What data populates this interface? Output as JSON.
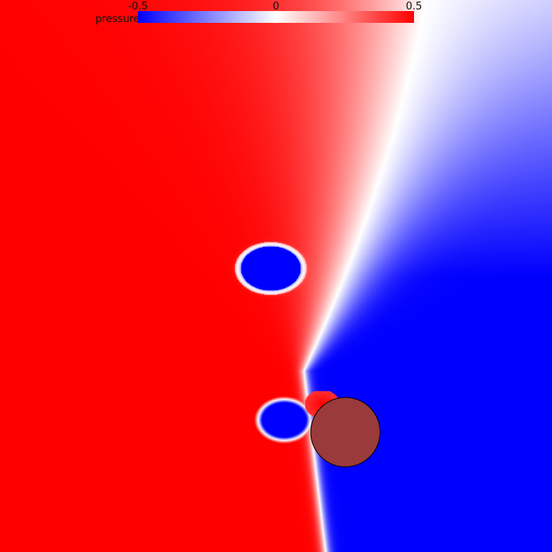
{
  "legend": {
    "label": "pressure",
    "ticks": [
      "-0.5",
      "0",
      "0.5"
    ],
    "min": -0.5,
    "max": 0.5
  },
  "colors": {
    "negative": "#0000ff",
    "zero": "#ffffff",
    "positive": "#ff0000",
    "obstacle": "#9a3a3a",
    "obstacle_stroke": "#000000"
  }
}
